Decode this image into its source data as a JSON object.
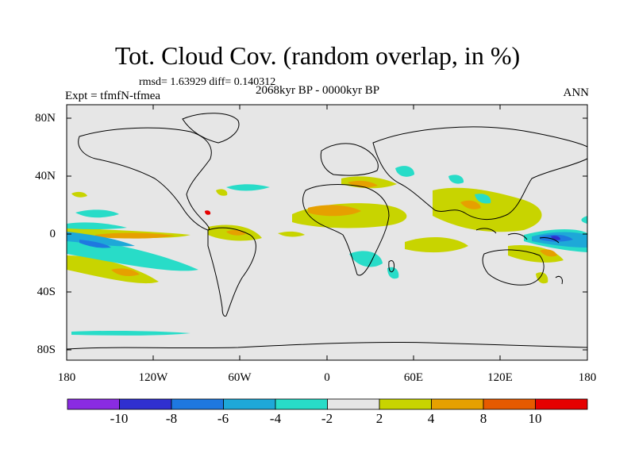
{
  "map": {
    "title": "Tot. Cloud Cov. (random overlap, in %)",
    "stats_line": "rmsd= 1.63929 diff= 0.140312",
    "period": "2068kyr BP - 0000kyr BP",
    "experiment": "Expt = tfmfN-tfmea",
    "season": "ANN",
    "lat_labels": [
      "80N",
      "40N",
      "0",
      "40S",
      "80S"
    ],
    "lon_labels": [
      "180",
      "120W",
      "60W",
      "0",
      "60E",
      "120E",
      "180"
    ],
    "colorbar": {
      "labels": [
        "-10",
        "-8",
        "-6",
        "-4",
        "-2",
        "2",
        "4",
        "8",
        "10"
      ],
      "colors": [
        "#8a2be2",
        "#3030d0",
        "#1e78e0",
        "#1ea8d8",
        "#28dcc8",
        "#e6e6e6",
        "#c8d400",
        "#e6a000",
        "#e65a00",
        "#e60000"
      ]
    },
    "colors": {
      "land_background": "#e6e6e6",
      "coastline": "#000000"
    }
  }
}
